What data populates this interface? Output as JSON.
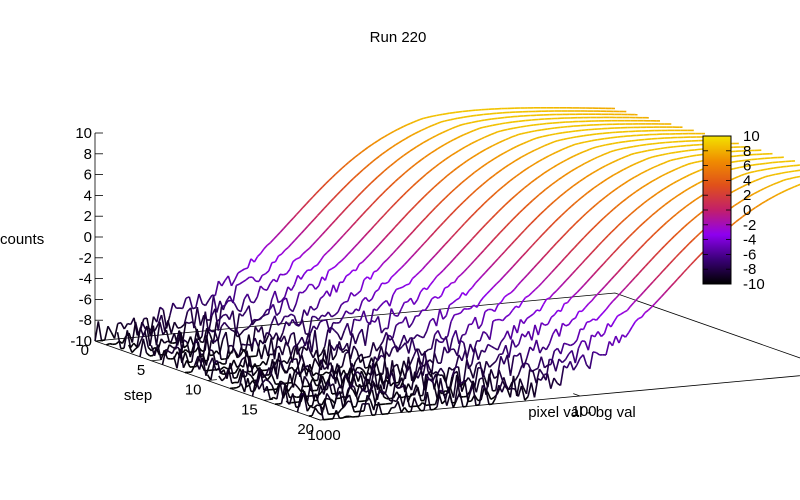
{
  "chart_data": {
    "type": "surface",
    "title": "Run 220",
    "zlabel": "counts",
    "ylabel": "step",
    "xlabel": "pixel val - bg val",
    "x_scale": "log",
    "x_tick_labels": [
      "1000",
      "100",
      "10"
    ],
    "y_ticks": [
      0,
      5,
      10,
      15,
      20
    ],
    "z_ticks": [
      -10,
      -8,
      -6,
      -4,
      -2,
      0,
      2,
      4,
      6,
      8,
      10
    ],
    "zlim": [
      -10,
      10
    ],
    "ylim": [
      0,
      20
    ],
    "colorbar": {
      "ticks": [
        10,
        8,
        6,
        4,
        2,
        0,
        -2,
        -4,
        -6,
        -8,
        -10
      ],
      "range": [
        -10,
        10
      ],
      "palette": [
        "#000000",
        "#3a0078",
        "#8e00f0",
        "#c21f6a",
        "#e0501a",
        "#f08d00",
        "#f3e300"
      ]
    },
    "series_steps": [
      0,
      1,
      2,
      3,
      4,
      5,
      6,
      7,
      8,
      9,
      10,
      11,
      12,
      13,
      14,
      15,
      16,
      17,
      18,
      19,
      20
    ],
    "curve_shape": {
      "low_log10_x": 1.0,
      "high_log10_x": 3.0,
      "plateau_value": 10,
      "floor_value": -10
    }
  }
}
